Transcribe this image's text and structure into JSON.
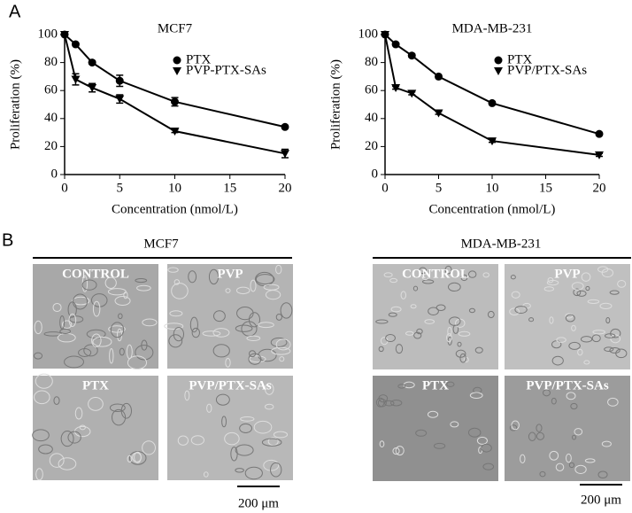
{
  "panel_labels": [
    "A",
    "B"
  ],
  "chart_data": [
    {
      "type": "line",
      "title": "MCF7",
      "x_label": "Concentration (nmol/L)",
      "y_label": "Proliferation (%)",
      "x": [
        0,
        1,
        2.5,
        5,
        10,
        20
      ],
      "series": [
        {
          "name": "PTX",
          "color": "#000000",
          "marker": "circle",
          "values": [
            100,
            93,
            80,
            67,
            52,
            34
          ],
          "errors": [
            0,
            1,
            1,
            4,
            3,
            1
          ]
        },
        {
          "name": "PVP-PTX-SAs",
          "color": "#000000",
          "marker": "triangle-down",
          "values": [
            100,
            68,
            62,
            54,
            31,
            15
          ],
          "errors": [
            0,
            4,
            3,
            3,
            1,
            3
          ]
        }
      ],
      "xlim": [
        0,
        20
      ],
      "xticks": [
        0,
        5,
        10,
        15,
        20
      ],
      "ylim": [
        0,
        100
      ],
      "yticks": [
        0,
        20,
        40,
        60,
        80,
        100
      ]
    },
    {
      "type": "line",
      "title": "MDA-MB-231",
      "x_label": "Concentration (nmol/L)",
      "y_label": "Proliferation (%)",
      "x": [
        0,
        1,
        2.5,
        5,
        10,
        20
      ],
      "series": [
        {
          "name": "PTX",
          "color": "#000000",
          "marker": "circle",
          "values": [
            100,
            93,
            85,
            70,
            51,
            29
          ],
          "errors": [
            0,
            1,
            1,
            1,
            1,
            1
          ]
        },
        {
          "name": "PVP/PTX-SAs",
          "color": "#000000",
          "marker": "triangle-down",
          "values": [
            100,
            62,
            58,
            44,
            24,
            14
          ],
          "errors": [
            0,
            1,
            1,
            1,
            1,
            1
          ]
        }
      ],
      "xlim": [
        0,
        20
      ],
      "xticks": [
        0,
        5,
        10,
        15,
        20
      ],
      "ylim": [
        0,
        100
      ],
      "yticks": [
        0,
        20,
        40,
        60,
        80,
        100
      ]
    }
  ],
  "micrographs": [
    {
      "title": "MCF7",
      "images": [
        "CONTROL",
        "PVP",
        "PTX",
        "PVP/PTX-SAs"
      ],
      "scale_bar": "200 μm"
    },
    {
      "title": "MDA-MB-231",
      "images": [
        "CONTROL",
        "PVP",
        "PTX",
        "PVP/PTX-SAs"
      ],
      "scale_bar": "200 μm"
    }
  ]
}
